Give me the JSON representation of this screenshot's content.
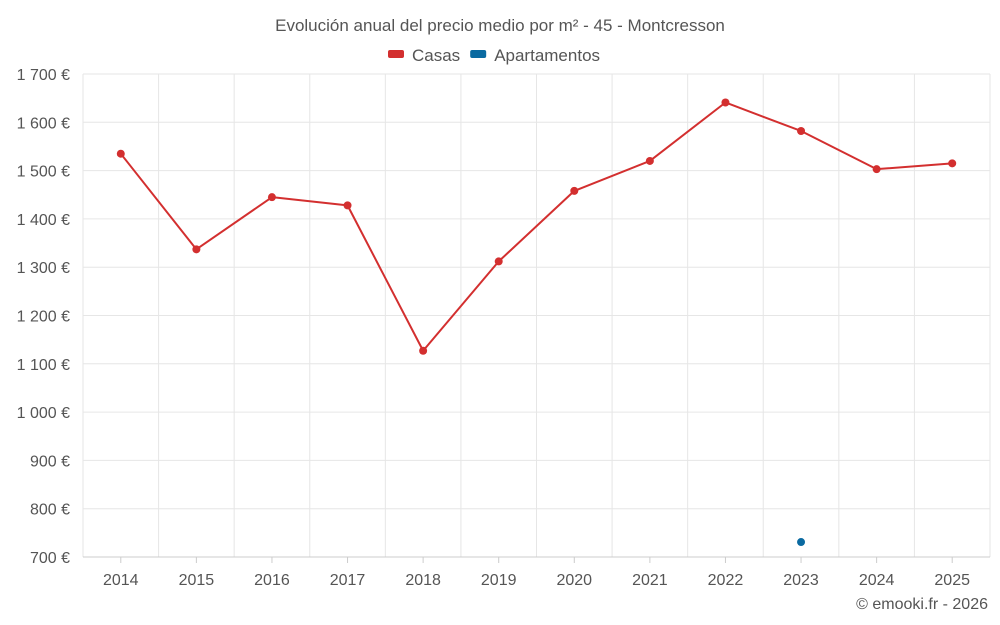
{
  "chart_data": {
    "type": "line",
    "title": "Evolución anual del precio medio por m² - 45 - Montcresson",
    "categories": [
      "2014",
      "2015",
      "2016",
      "2017",
      "2018",
      "2019",
      "2020",
      "2021",
      "2022",
      "2023",
      "2024",
      "2025"
    ],
    "series": [
      {
        "name": "Casas",
        "color": "#d32f2f",
        "values": [
          1535,
          1337,
          1445,
          1428,
          1127,
          1312,
          1458,
          1520,
          1641,
          1582,
          1503,
          1515
        ]
      },
      {
        "name": "Apartamentos",
        "color": "#0a6aa1",
        "values": [
          null,
          null,
          null,
          null,
          null,
          null,
          null,
          null,
          null,
          731,
          null,
          null
        ]
      }
    ],
    "ylim": [
      700,
      1700
    ],
    "yticks": [
      700,
      800,
      900,
      1000,
      1100,
      1200,
      1300,
      1400,
      1500,
      1600,
      1700
    ],
    "ytick_labels": [
      "700 €",
      "800 €",
      "900 €",
      "1 000 €",
      "1 100 €",
      "1 200 €",
      "1 300 €",
      "1 400 €",
      "1 500 €",
      "1 600 €",
      "1 700 €"
    ],
    "xlabel": "",
    "ylabel": "",
    "grid": true,
    "legend": "top-center"
  },
  "credit": "© emooki.fr - 2026"
}
